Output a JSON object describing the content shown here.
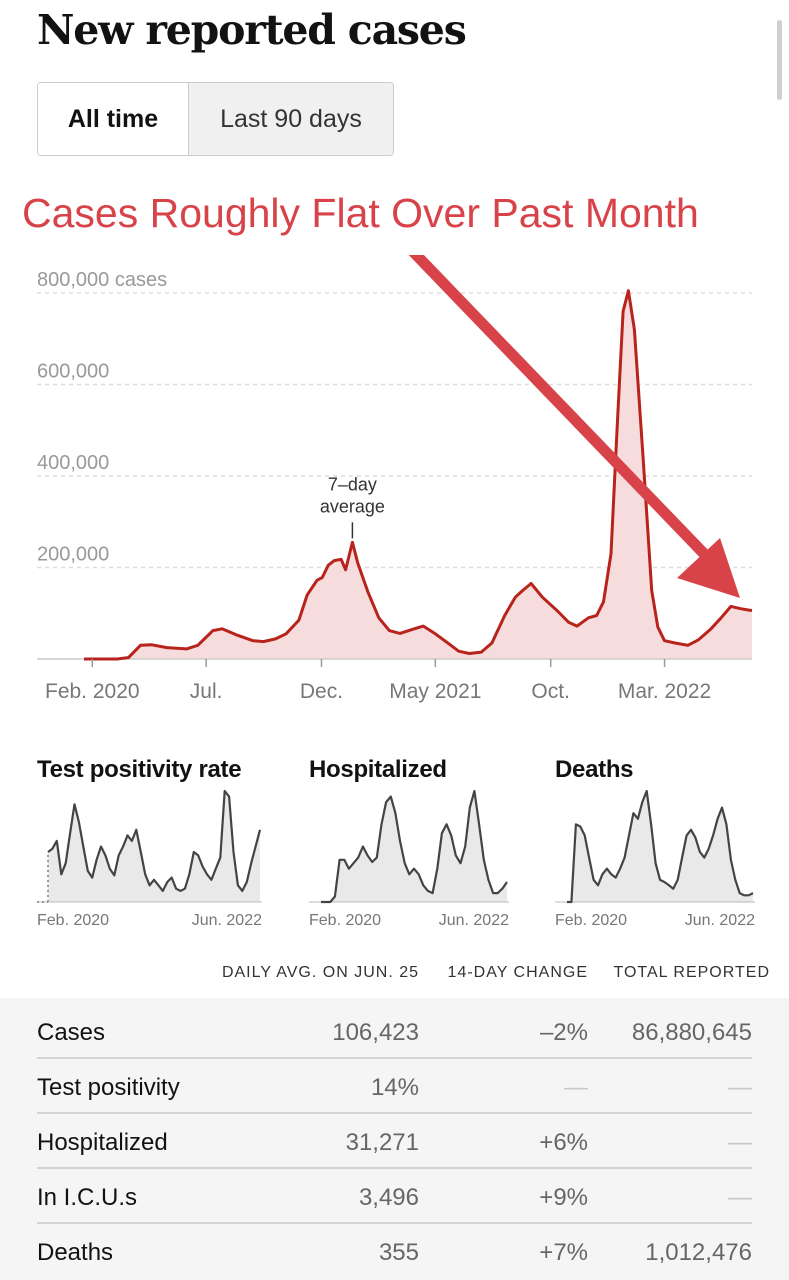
{
  "page": {
    "title": "New reported cases",
    "tabs": [
      {
        "label": "All time",
        "active": true
      },
      {
        "label": "Last 90 days",
        "active": false
      }
    ],
    "annotation": "Cases Roughly Flat Over Past Month"
  },
  "colors": {
    "line": "#b8231b",
    "fill": "#f6dcdc",
    "annotation": "#d8434a",
    "mini_line": "#444444",
    "mini_fill": "#e9e9e9"
  },
  "chart_data": [
    {
      "type": "area",
      "title": "New reported cases",
      "ylabel": "cases",
      "y_ticks": [
        {
          "value": 200000,
          "label": "200,000"
        },
        {
          "value": 400000,
          "label": "400,000"
        },
        {
          "value": 600000,
          "label": "600,000"
        },
        {
          "value": 800000,
          "label": "800,000 cases"
        }
      ],
      "ylim": [
        0,
        800000
      ],
      "xlim": [
        "2020-01-21",
        "2022-06-25"
      ],
      "x_ticks": [
        {
          "date": "2020-02-01",
          "label": "Feb. 2020"
        },
        {
          "date": "2020-07-01",
          "label": "Jul."
        },
        {
          "date": "2020-12-01",
          "label": "Dec."
        },
        {
          "date": "2021-05-01",
          "label": "May 2021"
        },
        {
          "date": "2021-10-01",
          "label": "Oct."
        },
        {
          "date": "2022-03-01",
          "label": "Mar. 2022"
        }
      ],
      "grid": true,
      "annotation": {
        "label_lines": [
          "7–day",
          "average"
        ],
        "date": "2021-01-11",
        "value": 255000
      },
      "series": [
        {
          "x": [
            "2020-01-21",
            "2020-03-05",
            "2020-03-20",
            "2020-04-05",
            "2020-04-20",
            "2020-05-10",
            "2020-06-05",
            "2020-06-20",
            "2020-07-10",
            "2020-07-22",
            "2020-08-10",
            "2020-09-01",
            "2020-09-15",
            "2020-10-01",
            "2020-10-15",
            "2020-11-01",
            "2020-11-12",
            "2020-11-25",
            "2020-12-02",
            "2020-12-10",
            "2020-12-18",
            "2020-12-27",
            "2021-01-02",
            "2021-01-11",
            "2021-01-18",
            "2021-02-01",
            "2021-02-15",
            "2021-03-01",
            "2021-03-15",
            "2021-04-01",
            "2021-04-15",
            "2021-05-01",
            "2021-05-15",
            "2021-06-01",
            "2021-06-15",
            "2021-07-01",
            "2021-07-15",
            "2021-08-01",
            "2021-08-15",
            "2021-08-25",
            "2021-09-05",
            "2021-09-20",
            "2021-10-10",
            "2021-10-25",
            "2021-11-05",
            "2021-11-20",
            "2021-12-01",
            "2021-12-10",
            "2021-12-20",
            "2021-12-28",
            "2022-01-05",
            "2022-01-12",
            "2022-01-20",
            "2022-02-01",
            "2022-02-12",
            "2022-02-20",
            "2022-03-01",
            "2022-03-15",
            "2022-04-01",
            "2022-04-15",
            "2022-05-01",
            "2022-05-15",
            "2022-05-28",
            "2022-06-10",
            "2022-06-20",
            "2022-06-25"
          ],
          "y": [
            0,
            0,
            3000,
            30000,
            31000,
            25000,
            22000,
            30000,
            62000,
            66000,
            53000,
            40000,
            38000,
            44000,
            55000,
            85000,
            140000,
            172000,
            178000,
            205000,
            215000,
            218000,
            195000,
            255000,
            210000,
            145000,
            90000,
            62000,
            56000,
            65000,
            72000,
            55000,
            38000,
            17000,
            12000,
            15000,
            35000,
            95000,
            135000,
            150000,
            165000,
            135000,
            105000,
            80000,
            72000,
            90000,
            95000,
            125000,
            230000,
            500000,
            760000,
            805000,
            720000,
            430000,
            150000,
            70000,
            40000,
            35000,
            30000,
            42000,
            65000,
            90000,
            115000,
            110000,
            107000,
            106000
          ]
        }
      ]
    },
    {
      "type": "area",
      "title": "Test positivity rate",
      "x_ticks": [
        {
          "label": "Feb. 2020"
        },
        {
          "label": "Jun. 2022"
        }
      ],
      "series": [
        {
          "y": [
            0.45,
            0.48,
            0.55,
            0.25,
            0.35,
            0.62,
            0.88,
            0.72,
            0.5,
            0.28,
            0.22,
            0.38,
            0.5,
            0.42,
            0.3,
            0.24,
            0.42,
            0.5,
            0.6,
            0.55,
            0.65,
            0.45,
            0.25,
            0.15,
            0.2,
            0.15,
            0.1,
            0.18,
            0.22,
            0.12,
            0.1,
            0.12,
            0.25,
            0.45,
            0.42,
            0.32,
            0.25,
            0.2,
            0.3,
            0.4,
            1.0,
            0.95,
            0.45,
            0.15,
            0.1,
            0.18,
            0.35,
            0.5,
            0.65
          ]
        }
      ]
    },
    {
      "type": "area",
      "title": "Hospitalized",
      "x_ticks": [
        {
          "label": "Feb. 2020"
        },
        {
          "label": "Jun. 2022"
        }
      ],
      "series": [
        {
          "y": [
            0,
            0,
            0,
            0.05,
            0.38,
            0.38,
            0.3,
            0.35,
            0.4,
            0.5,
            0.42,
            0.36,
            0.4,
            0.7,
            0.9,
            0.95,
            0.8,
            0.55,
            0.35,
            0.25,
            0.3,
            0.25,
            0.15,
            0.1,
            0.08,
            0.3,
            0.62,
            0.7,
            0.6,
            0.42,
            0.35,
            0.5,
            0.85,
            1.0,
            0.7,
            0.38,
            0.2,
            0.08,
            0.08,
            0.12,
            0.18
          ]
        }
      ]
    },
    {
      "type": "area",
      "title": "Deaths",
      "x_ticks": [
        {
          "label": "Feb. 2020"
        },
        {
          "label": "Jun. 2022"
        }
      ],
      "series": [
        {
          "y": [
            0,
            0,
            0.7,
            0.68,
            0.6,
            0.4,
            0.2,
            0.15,
            0.25,
            0.3,
            0.25,
            0.22,
            0.3,
            0.4,
            0.6,
            0.8,
            0.75,
            0.9,
            1.0,
            0.7,
            0.35,
            0.2,
            0.18,
            0.15,
            0.12,
            0.2,
            0.4,
            0.6,
            0.65,
            0.58,
            0.45,
            0.4,
            0.48,
            0.6,
            0.75,
            0.85,
            0.7,
            0.38,
            0.2,
            0.08,
            0.06,
            0.06,
            0.08
          ]
        }
      ]
    }
  ],
  "table": {
    "columns": [
      "DAILY AVG. ON JUN. 25",
      "14-DAY CHANGE",
      "TOTAL REPORTED"
    ],
    "rows": [
      {
        "label": "Cases",
        "avg": "106,423",
        "change": "–2%",
        "total": "86,880,645"
      },
      {
        "label": "Test positivity",
        "avg": "14%",
        "change": "—",
        "total": "—"
      },
      {
        "label": "Hospitalized",
        "avg": "31,271",
        "change": "+6%",
        "total": "—"
      },
      {
        "label": "In I.C.U.s",
        "avg": "3,496",
        "change": "+9%",
        "total": "—"
      },
      {
        "label": "Deaths",
        "avg": "355",
        "change": "+7%",
        "total": "1,012,476"
      }
    ]
  }
}
